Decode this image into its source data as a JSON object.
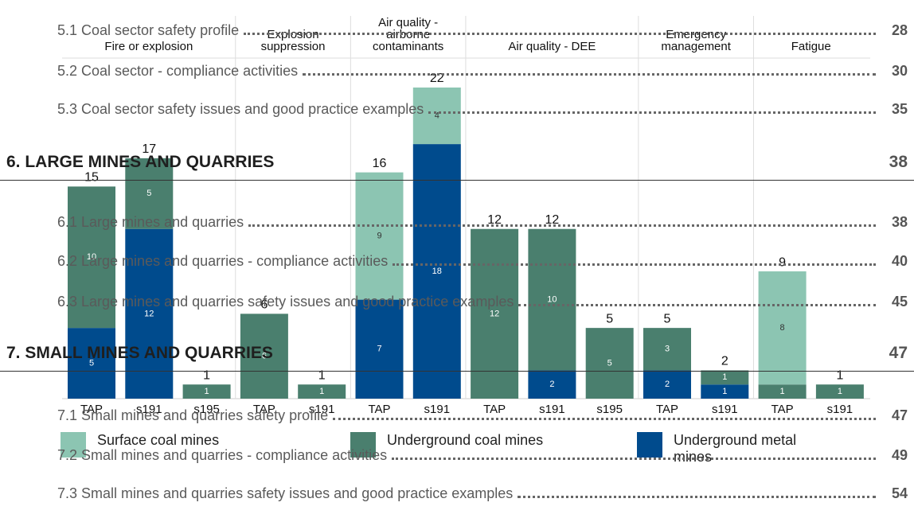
{
  "chart_data": {
    "type": "bar",
    "groups": [
      {
        "name": "Fire or explosion",
        "categories": [
          "TAP",
          "s191",
          "s195"
        ]
      },
      {
        "name": "Explosion suppression",
        "categories": [
          "TAP",
          "s191"
        ]
      },
      {
        "name": "Air quality - airborne contaminants",
        "categories": [
          "TAP",
          "s191"
        ]
      },
      {
        "name": "Air quality - DEE",
        "categories": [
          "TAP",
          "s191",
          "s195"
        ]
      },
      {
        "name": "Emergency management",
        "categories": [
          "TAP",
          "s191"
        ]
      },
      {
        "name": "Fatigue",
        "categories": [
          "TAP",
          "s191"
        ]
      }
    ],
    "series": [
      {
        "name": "Surface coal mines",
        "color": "#8cc5b2",
        "values": [
          null,
          null,
          null,
          null,
          null,
          9,
          4,
          null,
          null,
          null,
          null,
          null,
          8,
          null
        ]
      },
      {
        "name": "Underground coal mines",
        "color": "#4a7f6e",
        "values": [
          10,
          5,
          1,
          6,
          1,
          null,
          null,
          12,
          10,
          5,
          3,
          1,
          1,
          1
        ]
      },
      {
        "name": "Underground metal mines",
        "color": "#004b8d",
        "values": [
          5,
          12,
          null,
          null,
          null,
          7,
          18,
          null,
          2,
          null,
          2,
          1,
          null,
          null
        ]
      }
    ],
    "totals": [
      15,
      17,
      1,
      6,
      1,
      16,
      22,
      12,
      12,
      5,
      5,
      2,
      9,
      1
    ],
    "ylim": [
      0,
      22
    ]
  },
  "toc": [
    {
      "text": "5.1 Coal sector safety profile",
      "page": "28",
      "heading": false
    },
    {
      "text": "5.2 Coal sector - compliance activities",
      "page": "30",
      "heading": false
    },
    {
      "text": "5.3 Coal sector safety issues and good practice examples",
      "page": "35",
      "heading": false
    },
    {
      "text": "6. LARGE MINES AND QUARRIES",
      "page": "38",
      "heading": true
    },
    {
      "text": "6.1 Large mines and quarries",
      "page": "38",
      "heading": false
    },
    {
      "text": "6.2 Large mines and quarries - compliance activities",
      "page": "40",
      "heading": false
    },
    {
      "text": "6.3 Large mines and quarries safety issues and good practice examples",
      "page": "45",
      "heading": false
    },
    {
      "text": "7. SMALL MINES AND QUARRIES",
      "page": "47",
      "heading": true
    },
    {
      "text": "7.1 Small mines and quarries safety profile",
      "page": "47",
      "heading": false
    },
    {
      "text": "7.2 Small mines and quarries - compliance activities",
      "page": "49",
      "heading": false
    },
    {
      "text": "7.3 Small mines and quarries safety issues and good practice examples",
      "page": "54",
      "heading": false
    }
  ]
}
